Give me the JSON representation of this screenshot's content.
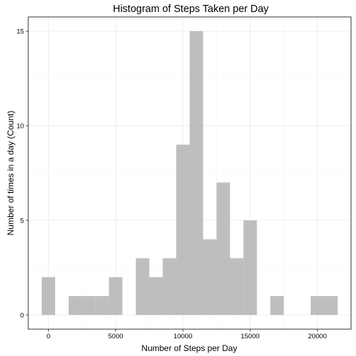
{
  "chart_data": {
    "type": "bar",
    "title": "Histogram of Steps Taken per Day",
    "xlabel": "Number of Steps per Day",
    "ylabel": "Number of times in a day (Count)",
    "bin_width": 1000,
    "x_ticks": [
      0,
      5000,
      10000,
      15000,
      20000
    ],
    "y_ticks": [
      0,
      5,
      10,
      15
    ],
    "xlim": [
      -1500,
      22500
    ],
    "ylim": [
      -0.75,
      15.75
    ],
    "grid": true,
    "legend": "none",
    "bar_color": "#bebebe",
    "bins": [
      {
        "x": 0,
        "count": 2
      },
      {
        "x": 1000,
        "count": 0
      },
      {
        "x": 2000,
        "count": 1
      },
      {
        "x": 3000,
        "count": 1
      },
      {
        "x": 4000,
        "count": 1
      },
      {
        "x": 5000,
        "count": 2
      },
      {
        "x": 6000,
        "count": 0
      },
      {
        "x": 7000,
        "count": 3
      },
      {
        "x": 8000,
        "count": 2
      },
      {
        "x": 9000,
        "count": 3
      },
      {
        "x": 10000,
        "count": 9
      },
      {
        "x": 11000,
        "count": 15
      },
      {
        "x": 12000,
        "count": 4
      },
      {
        "x": 13000,
        "count": 7
      },
      {
        "x": 14000,
        "count": 3
      },
      {
        "x": 15000,
        "count": 5
      },
      {
        "x": 16000,
        "count": 0
      },
      {
        "x": 17000,
        "count": 1
      },
      {
        "x": 18000,
        "count": 0
      },
      {
        "x": 19000,
        "count": 0
      },
      {
        "x": 20000,
        "count": 1
      },
      {
        "x": 21000,
        "count": 1
      }
    ]
  }
}
